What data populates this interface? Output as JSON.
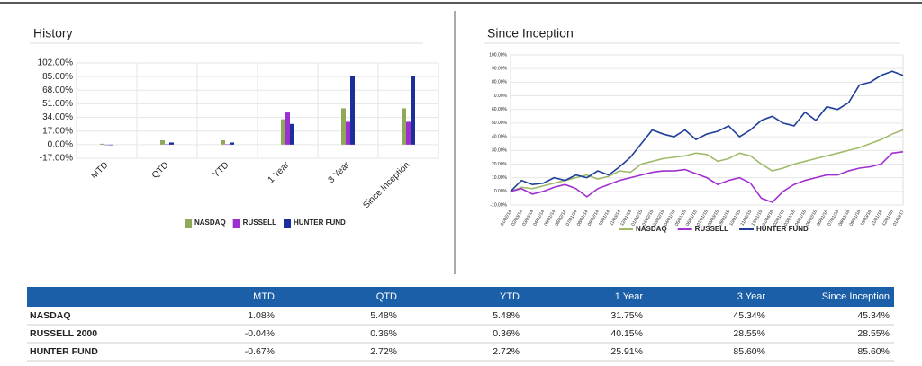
{
  "chart_data": [
    {
      "type": "bar",
      "title": "History",
      "categories": [
        "MTD",
        "QTD",
        "YTD",
        "1 Year",
        "3 Year",
        "Since Inception"
      ],
      "series": [
        {
          "name": "NASDAQ",
          "color": "#8fa85a",
          "values": [
            1.08,
            5.48,
            5.48,
            31.75,
            45.34,
            45.34
          ]
        },
        {
          "name": "RUSSELL",
          "color": "#9b2fd0",
          "values": [
            -0.04,
            0.36,
            0.36,
            40.15,
            28.55,
            28.55
          ]
        },
        {
          "name": "HUNTER FUND",
          "color": "#1b2f9c",
          "values": [
            -0.67,
            2.72,
            2.72,
            25.91,
            85.6,
            85.6
          ]
        }
      ],
      "ylim": [
        -17,
        102
      ],
      "yticks": [
        {
          "value": -17,
          "label": "-17.00%"
        },
        {
          "value": 0,
          "label": "0.00%"
        },
        {
          "value": 17,
          "label": "17.00%"
        },
        {
          "value": 34,
          "label": "34.00%"
        },
        {
          "value": 51,
          "label": "51.00%"
        },
        {
          "value": 68,
          "label": "68.00%"
        },
        {
          "value": 85,
          "label": "85.00%"
        },
        {
          "value": 102,
          "label": "102.00%"
        }
      ],
      "grid": true,
      "legend": "bottom"
    },
    {
      "type": "line",
      "title": "Since Inception",
      "categories": [
        "01/02/14",
        "02/03/14",
        "03/03/14",
        "04/01/14",
        "05/01/14",
        "06/02/14",
        "07/01/14",
        "08/01/14",
        "09/02/14",
        "10/01/14",
        "11/03/14",
        "12/01/14",
        "01/02/15",
        "02/02/15",
        "03/02/15",
        "04/01/15",
        "05/01/15",
        "06/01/15",
        "07/01/15",
        "08/03/15",
        "09/01/15",
        "10/01/15",
        "11/02/15",
        "12/01/15",
        "01/04/16",
        "02/01/16",
        "03/01/16",
        "04/01/16",
        "05/02/16",
        "06/01/16",
        "07/01/16",
        "08/01/16",
        "09/01/16",
        "10/03/16",
        "11/01/16",
        "12/01/16",
        "01/03/17"
      ],
      "series": [
        {
          "name": "NASDAQ",
          "color": "#9fbb6a",
          "values": [
            0,
            3,
            2,
            4,
            6,
            8,
            10,
            12,
            9,
            11,
            15,
            14,
            20,
            22,
            24,
            25,
            26,
            28,
            27,
            22,
            24,
            28,
            26,
            20,
            15,
            17,
            20,
            22,
            24,
            26,
            28,
            30,
            32,
            35,
            38,
            42,
            45
          ]
        },
        {
          "name": "RUSSELL",
          "color": "#a030d0",
          "values": [
            0,
            2,
            -2,
            0,
            3,
            5,
            2,
            -4,
            2,
            5,
            8,
            10,
            12,
            14,
            15,
            15,
            16,
            13,
            10,
            5,
            8,
            10,
            6,
            -5,
            -8,
            0,
            5,
            8,
            10,
            12,
            12,
            15,
            17,
            18,
            20,
            28,
            29
          ]
        },
        {
          "name": "HUNTER FUND",
          "color": "#1f3f99",
          "values": [
            0,
            8,
            5,
            6,
            10,
            8,
            12,
            10,
            15,
            12,
            18,
            25,
            35,
            45,
            42,
            40,
            45,
            38,
            42,
            44,
            48,
            40,
            45,
            52,
            55,
            50,
            48,
            58,
            52,
            62,
            60,
            65,
            78,
            80,
            85,
            88,
            85
          ]
        }
      ],
      "ylim": [
        -10,
        100
      ],
      "yticks": [
        {
          "value": -10,
          "label": "-10.00%"
        },
        {
          "value": 0,
          "label": "0.00%"
        },
        {
          "value": 10,
          "label": "10.00%"
        },
        {
          "value": 20,
          "label": "20.00%"
        },
        {
          "value": 30,
          "label": "30.00%"
        },
        {
          "value": 40,
          "label": "40.00%"
        },
        {
          "value": 50,
          "label": "50.00%"
        },
        {
          "value": 60,
          "label": "60.00%"
        },
        {
          "value": 70,
          "label": "70.00%"
        },
        {
          "value": 80,
          "label": "80.00%"
        },
        {
          "value": 90,
          "label": "90.00%"
        },
        {
          "value": 100,
          "label": "100.00%"
        }
      ],
      "grid": true,
      "legend": "bottom"
    }
  ],
  "table": {
    "header": [
      "MTD",
      "QTD",
      "YTD",
      "1 Year",
      "3 Year",
      "Since Inception"
    ],
    "rows": [
      [
        "NASDAQ",
        "1.08%",
        "5.48%",
        "5.48%",
        "31.75%",
        "45.34%",
        "45.34%"
      ],
      [
        "RUSSELL 2000",
        "-0.04%",
        "0.36%",
        "0.36%",
        "40.15%",
        "28.55%",
        "28.55%"
      ],
      [
        "HUNTER FUND",
        "-0.67%",
        "2.72%",
        "2.72%",
        "25.91%",
        "85.60%",
        "85.60%"
      ]
    ]
  }
}
